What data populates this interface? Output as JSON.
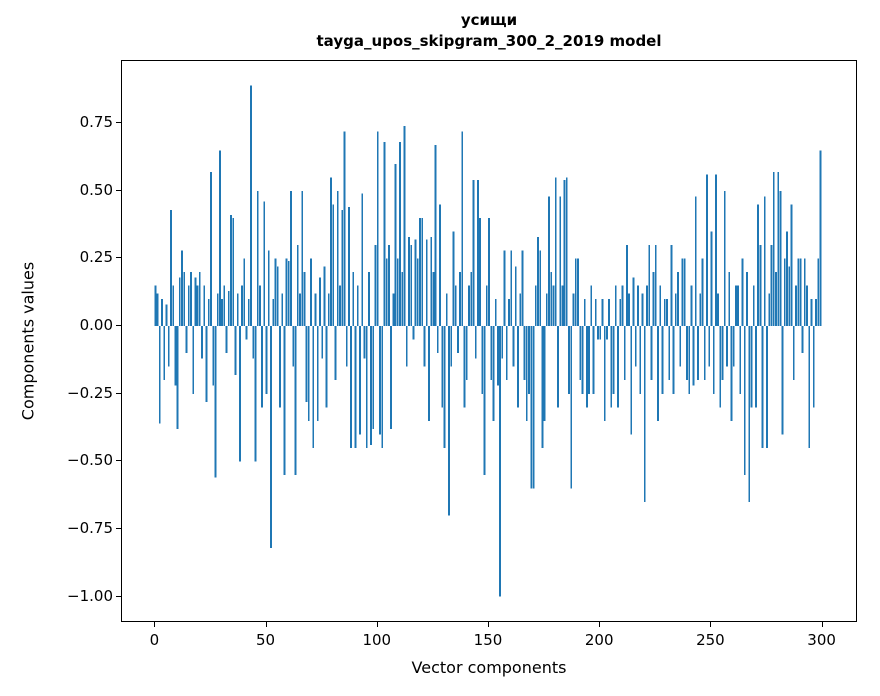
{
  "chart": {
    "title_line1": "усищи",
    "title_line2": "tayga_upos_skipgram_300_2_2019 model",
    "xlabel": "Vector components",
    "ylabel": "Components values"
  },
  "chart_data": {
    "type": "bar",
    "title": "усищи — tayga_upos_skipgram_300_2_2019 model",
    "xlabel": "Vector components",
    "ylabel": "Components values",
    "bar_color": "#1f77b4",
    "grid": false,
    "legend": null,
    "xlim": [
      -15,
      315
    ],
    "ylim": [
      -1.09,
      0.98
    ],
    "xticks": [
      0,
      50,
      100,
      150,
      200,
      250,
      300
    ],
    "xtick_labels": [
      "0",
      "50",
      "100",
      "150",
      "200",
      "250",
      "300"
    ],
    "yticks": [
      -1.0,
      -0.75,
      -0.5,
      -0.25,
      0,
      0.25,
      0.5,
      0.75
    ],
    "ytick_labels": [
      "−1.00",
      "−0.75",
      "−0.50",
      "−0.25",
      "0.00",
      "0.25",
      "0.50",
      "0.75"
    ],
    "x_start": 0,
    "bar_width": 0.8,
    "values": [
      0.15,
      0.12,
      -0.36,
      0.1,
      -0.2,
      0.08,
      -0.15,
      0.43,
      0.15,
      -0.22,
      -0.38,
      0.18,
      0.28,
      0.2,
      -0.1,
      0.15,
      0.2,
      -0.25,
      0.18,
      0.15,
      0.2,
      -0.12,
      0.15,
      -0.28,
      0.1,
      0.57,
      -0.22,
      -0.56,
      0.12,
      0.65,
      0.1,
      0.15,
      -0.1,
      0.13,
      0.41,
      0.4,
      -0.18,
      0.12,
      -0.5,
      0.15,
      0.25,
      -0.05,
      0.1,
      0.89,
      -0.12,
      -0.5,
      0.5,
      0.15,
      -0.3,
      0.46,
      -0.25,
      0.28,
      -0.82,
      0.1,
      0.25,
      0.22,
      -0.3,
      0.12,
      -0.55,
      0.25,
      0.24,
      0.5,
      -0.15,
      -0.55,
      0.3,
      0.12,
      0.5,
      0.2,
      -0.28,
      -0.35,
      0.25,
      -0.45,
      0.12,
      -0.35,
      0.18,
      -0.12,
      0.22,
      -0.3,
      0.12,
      0.55,
      0.45,
      -0.2,
      0.5,
      0.15,
      0.43,
      0.72,
      -0.15,
      0.44,
      -0.45,
      0.2,
      -0.45,
      0.15,
      -0.4,
      0.49,
      -0.12,
      -0.45,
      0.2,
      -0.44,
      -0.38,
      0.3,
      0.72,
      -0.4,
      -0.45,
      0.68,
      0.25,
      0.3,
      -0.38,
      0.12,
      0.6,
      0.25,
      0.68,
      0.2,
      0.74,
      -0.15,
      0.33,
      0.3,
      -0.05,
      0.32,
      0.25,
      0.4,
      0.4,
      -0.15,
      0.32,
      -0.35,
      0.33,
      0.2,
      0.67,
      -0.1,
      0.45,
      -0.3,
      -0.45,
      0.12,
      -0.7,
      -0.15,
      0.35,
      0.15,
      -0.1,
      0.2,
      0.72,
      -0.3,
      -0.2,
      0.15,
      0.2,
      0.54,
      -0.12,
      0.54,
      0.4,
      -0.25,
      -0.55,
      0.15,
      0.4,
      -0.2,
      -0.35,
      0.1,
      -0.22,
      -1.0,
      -0.12,
      0.28,
      -0.2,
      0.1,
      0.28,
      -0.15,
      0.22,
      -0.3,
      0.12,
      0.28,
      -0.2,
      -0.35,
      -0.25,
      -0.6,
      -0.6,
      0.15,
      0.33,
      0.28,
      -0.45,
      -0.35,
      0.12,
      0.48,
      0.2,
      0.15,
      0.55,
      -0.3,
      0.48,
      0.15,
      0.54,
      0.55,
      -0.25,
      -0.6,
      0.12,
      0.25,
      0.25,
      -0.2,
      -0.25,
      0.1,
      -0.3,
      -0.25,
      0.15,
      -0.25,
      0.1,
      -0.05,
      -0.05,
      0.1,
      -0.35,
      -0.05,
      0.1,
      -0.3,
      -0.25,
      0.15,
      -0.3,
      0.1,
      0.15,
      -0.2,
      0.3,
      0.12,
      -0.4,
      0.18,
      -0.15,
      0.15,
      -0.25,
      0.12,
      -0.65,
      0.15,
      0.3,
      -0.2,
      0.2,
      0.3,
      -0.35,
      0.15,
      -0.25,
      0.1,
      0.1,
      -0.2,
      0.3,
      -0.25,
      0.12,
      0.2,
      -0.15,
      0.25,
      0.25,
      -0.2,
      -0.25,
      0.15,
      -0.22,
      0.48,
      -0.2,
      0.12,
      0.25,
      -0.2,
      0.56,
      -0.15,
      0.35,
      -0.25,
      0.56,
      0.12,
      -0.3,
      -0.2,
      0.5,
      -0.15,
      0.2,
      -0.35,
      -0.15,
      0.15,
      0.15,
      -0.25,
      0.25,
      -0.55,
      0.2,
      -0.65,
      -0.3,
      0.15,
      -0.3,
      0.45,
      0.3,
      -0.45,
      0.48,
      -0.45,
      0.12,
      0.3,
      0.57,
      0.2,
      0.57,
      0.5,
      -0.4,
      0.25,
      0.35,
      0.22,
      0.45,
      -0.2,
      0.15,
      0.25,
      0.25,
      -0.1,
      0.25,
      0.15,
      -0.45,
      0.1,
      -0.3,
      0.1,
      0.25,
      0.65
    ]
  }
}
